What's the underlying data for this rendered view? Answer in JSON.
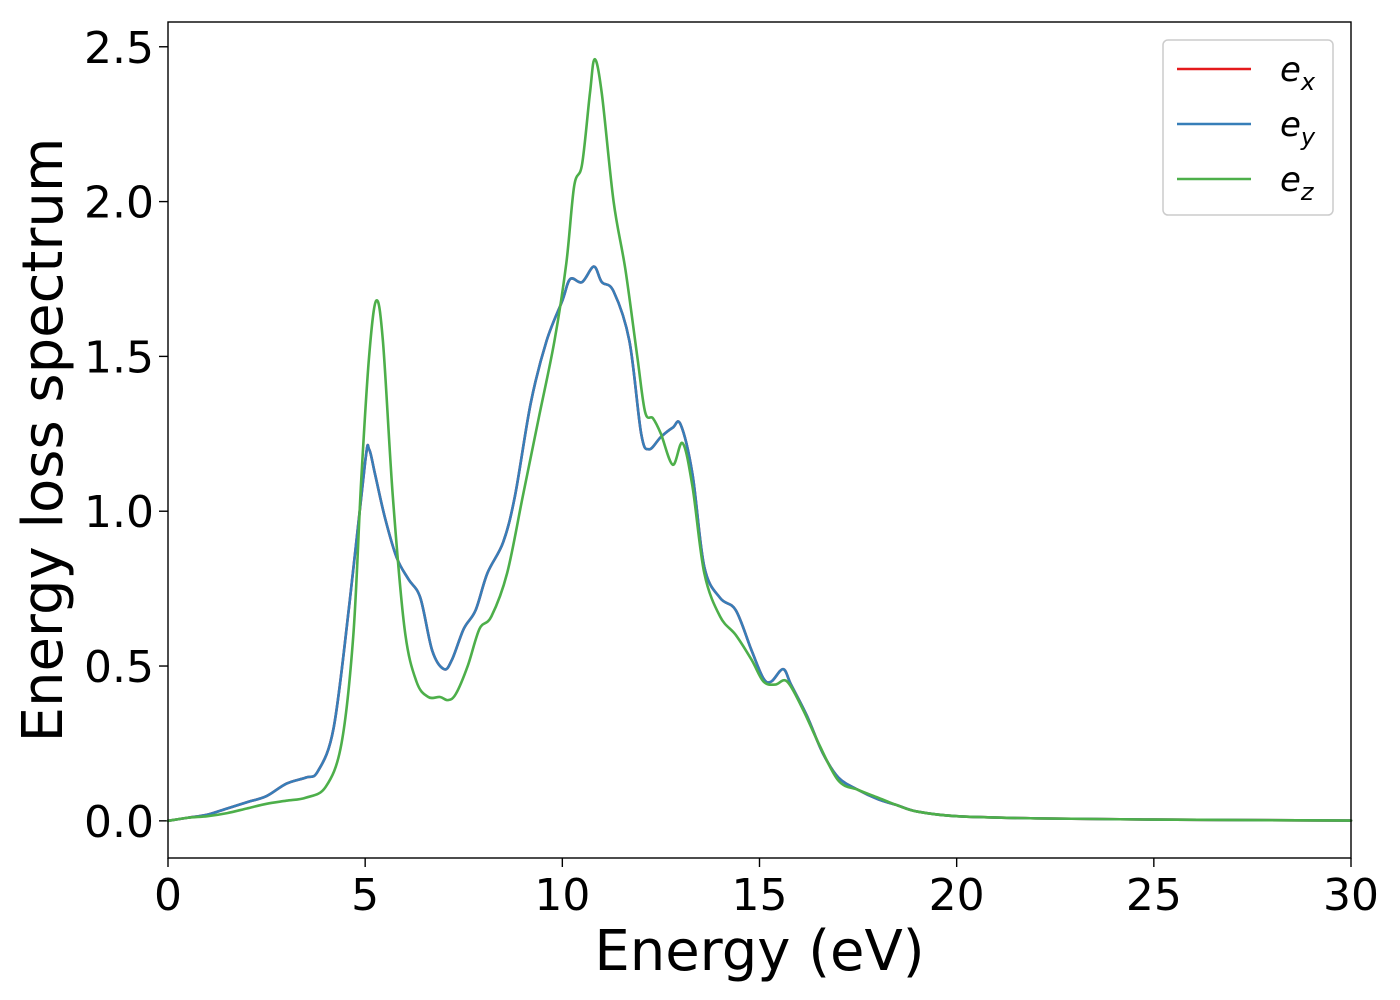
{
  "chart_data": {
    "type": "line",
    "xlabel": "Energy (eV)",
    "ylabel": "Energy loss spectrum",
    "xlim": [
      0,
      30
    ],
    "ylim": [
      -0.12,
      2.58
    ],
    "xticks": [
      0,
      5,
      10,
      15,
      20,
      25,
      30
    ],
    "xtick_labels": [
      "0",
      "5",
      "10",
      "15",
      "20",
      "25",
      "30"
    ],
    "yticks": [
      0.0,
      0.5,
      1.0,
      1.5,
      2.0,
      2.5
    ],
    "ytick_labels": [
      "0.0",
      "0.5",
      "1.0",
      "1.5",
      "2.0",
      "2.5"
    ],
    "grid": false,
    "legend_position": "top-right",
    "series": [
      {
        "name": "e_x",
        "legend_base": "e",
        "legend_sub": "x",
        "color": "#e41a1c",
        "x": [
          0,
          0.5,
          1,
          1.5,
          2,
          2.5,
          3,
          3.5,
          3.8,
          4.2,
          4.6,
          5.0,
          5.1,
          5.25,
          5.5,
          5.8,
          6.1,
          6.4,
          6.7,
          7.0,
          7.2,
          7.5,
          7.8,
          8.1,
          8.5,
          8.8,
          9.2,
          9.6,
          10.0,
          10.2,
          10.5,
          10.8,
          11.0,
          11.3,
          11.7,
          12.0,
          12.2,
          12.5,
          12.8,
          13.0,
          13.3,
          13.6,
          14.0,
          14.4,
          14.8,
          15.1,
          15.3,
          15.6,
          15.8,
          16.2,
          16.6,
          17.0,
          17.5,
          18.0,
          18.5,
          19.0,
          20.0,
          22.0,
          25.0,
          30.0
        ],
        "y": [
          0.0,
          0.01,
          0.02,
          0.04,
          0.06,
          0.08,
          0.12,
          0.14,
          0.16,
          0.3,
          0.7,
          1.16,
          1.2,
          1.12,
          0.98,
          0.85,
          0.78,
          0.72,
          0.55,
          0.49,
          0.52,
          0.62,
          0.68,
          0.8,
          0.9,
          1.05,
          1.35,
          1.55,
          1.68,
          1.75,
          1.74,
          1.79,
          1.74,
          1.71,
          1.55,
          1.25,
          1.2,
          1.24,
          1.27,
          1.28,
          1.12,
          0.82,
          0.72,
          0.68,
          0.55,
          0.46,
          0.45,
          0.49,
          0.44,
          0.34,
          0.22,
          0.14,
          0.1,
          0.07,
          0.05,
          0.03,
          0.015,
          0.008,
          0.004,
          0.001
        ]
      },
      {
        "name": "e_y",
        "legend_base": "e",
        "legend_sub": "y",
        "color": "#377eb8",
        "x": [
          0,
          0.5,
          1,
          1.5,
          2,
          2.5,
          3,
          3.5,
          3.8,
          4.2,
          4.6,
          5.0,
          5.1,
          5.25,
          5.5,
          5.8,
          6.1,
          6.4,
          6.7,
          7.0,
          7.2,
          7.5,
          7.8,
          8.1,
          8.5,
          8.8,
          9.2,
          9.6,
          10.0,
          10.2,
          10.5,
          10.8,
          11.0,
          11.3,
          11.7,
          12.0,
          12.2,
          12.5,
          12.8,
          13.0,
          13.3,
          13.6,
          14.0,
          14.4,
          14.8,
          15.1,
          15.3,
          15.6,
          15.8,
          16.2,
          16.6,
          17.0,
          17.5,
          18.0,
          18.5,
          19.0,
          20.0,
          22.0,
          25.0,
          30.0
        ],
        "y": [
          0.0,
          0.01,
          0.02,
          0.04,
          0.06,
          0.08,
          0.12,
          0.14,
          0.16,
          0.3,
          0.7,
          1.16,
          1.2,
          1.12,
          0.98,
          0.85,
          0.78,
          0.72,
          0.55,
          0.49,
          0.52,
          0.62,
          0.68,
          0.8,
          0.9,
          1.05,
          1.35,
          1.55,
          1.68,
          1.75,
          1.74,
          1.79,
          1.74,
          1.71,
          1.55,
          1.25,
          1.2,
          1.24,
          1.27,
          1.28,
          1.12,
          0.82,
          0.72,
          0.68,
          0.55,
          0.46,
          0.45,
          0.49,
          0.44,
          0.34,
          0.22,
          0.14,
          0.1,
          0.07,
          0.05,
          0.03,
          0.015,
          0.008,
          0.004,
          0.001
        ]
      },
      {
        "name": "e_z",
        "legend_base": "e",
        "legend_sub": "z",
        "color": "#4daf4a",
        "x": [
          0,
          0.5,
          1,
          1.5,
          2,
          2.5,
          3,
          3.5,
          4.0,
          4.4,
          4.7,
          4.9,
          5.1,
          5.28,
          5.45,
          5.7,
          6.0,
          6.3,
          6.6,
          6.9,
          7.1,
          7.3,
          7.6,
          7.9,
          8.2,
          8.6,
          9.0,
          9.4,
          9.8,
          10.1,
          10.3,
          10.5,
          10.7,
          10.82,
          11.0,
          11.3,
          11.6,
          11.9,
          12.1,
          12.3,
          12.5,
          12.8,
          13.05,
          13.3,
          13.6,
          14.0,
          14.4,
          14.8,
          15.1,
          15.4,
          15.7,
          16.1,
          16.5,
          17.0,
          17.5,
          18.0,
          18.5,
          19.0,
          20.0,
          22.0,
          25.0,
          30.0
        ],
        "y": [
          0.0,
          0.01,
          0.015,
          0.025,
          0.04,
          0.055,
          0.065,
          0.075,
          0.11,
          0.25,
          0.6,
          1.1,
          1.5,
          1.68,
          1.55,
          1.05,
          0.62,
          0.45,
          0.4,
          0.4,
          0.39,
          0.41,
          0.5,
          0.62,
          0.66,
          0.8,
          1.05,
          1.3,
          1.55,
          1.8,
          2.05,
          2.12,
          2.35,
          2.46,
          2.35,
          2.0,
          1.78,
          1.5,
          1.32,
          1.3,
          1.25,
          1.15,
          1.22,
          1.08,
          0.8,
          0.66,
          0.6,
          0.52,
          0.45,
          0.44,
          0.45,
          0.36,
          0.25,
          0.13,
          0.1,
          0.075,
          0.05,
          0.03,
          0.015,
          0.008,
          0.004,
          0.001
        ]
      }
    ]
  }
}
